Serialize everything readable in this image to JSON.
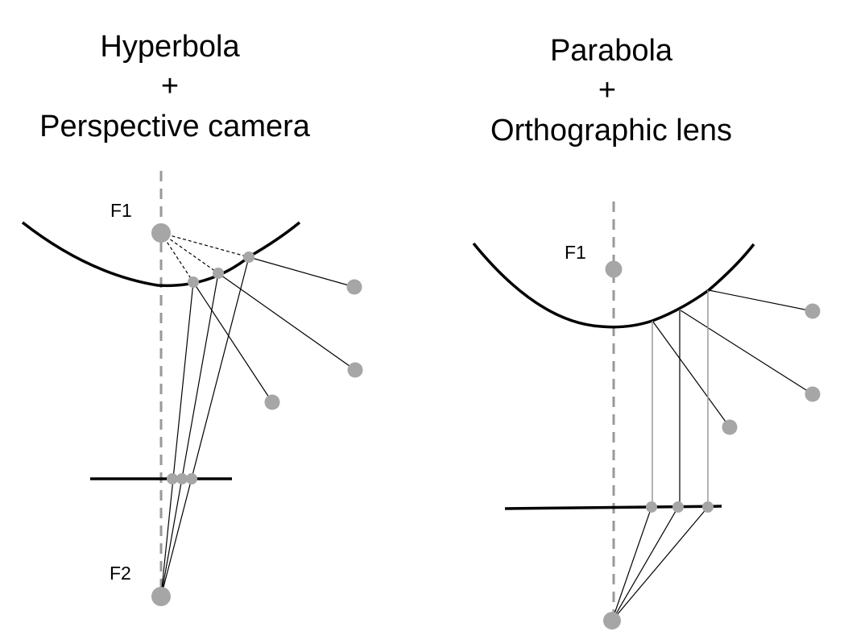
{
  "panels": {
    "hyperbola": {
      "title_line1": "Hyperbola",
      "title_plus": "+",
      "title_line2": "Perspective camera",
      "focus1_label": "F1",
      "focus2_label": "F2"
    },
    "parabola": {
      "title_line1": "Parabola",
      "title_plus": "+",
      "title_line2": "Orthographic lens",
      "focus1_label": "F1"
    }
  },
  "colors": {
    "point": "#a6a6a6",
    "axis": "#999999",
    "line": "#000000"
  }
}
